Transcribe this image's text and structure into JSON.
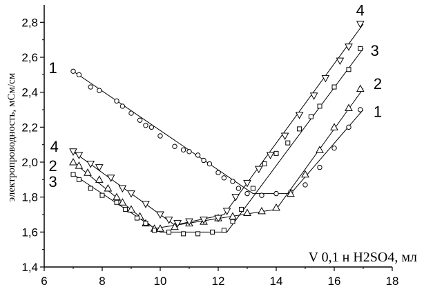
{
  "chart_data": {
    "type": "scatter",
    "xlabel": "V  0,1 н H2SO4, мл",
    "ylabel": "электропроводность, мСм/см",
    "xlim": [
      6,
      18
    ],
    "ylim": [
      1.4,
      2.9
    ],
    "x_ticks": [
      "6",
      "8",
      "10",
      "12",
      "14",
      "16",
      "18"
    ],
    "y_ticks": [
      "1,4",
      "1,6",
      "1,8",
      "2,0",
      "2,2",
      "2,4",
      "2,6",
      "2,8"
    ],
    "grid": false,
    "series": [
      {
        "name": "1",
        "marker": "circle",
        "points": [
          [
            7.0,
            2.52
          ],
          [
            7.2,
            2.5
          ],
          [
            7.6,
            2.43
          ],
          [
            7.9,
            2.41
          ],
          [
            8.5,
            2.35
          ],
          [
            8.7,
            2.32
          ],
          [
            9.0,
            2.28
          ],
          [
            9.3,
            2.24
          ],
          [
            9.5,
            2.21
          ],
          [
            9.7,
            2.2
          ],
          [
            10.0,
            2.15
          ],
          [
            10.5,
            2.09
          ],
          [
            10.8,
            2.07
          ],
          [
            11.0,
            2.06
          ],
          [
            11.3,
            2.04
          ],
          [
            11.5,
            2.01
          ],
          [
            11.7,
            1.99
          ],
          [
            12.0,
            1.94
          ],
          [
            12.2,
            1.91
          ],
          [
            12.5,
            1.89
          ],
          [
            12.7,
            1.85
          ],
          [
            13.0,
            1.82
          ],
          [
            13.5,
            1.81
          ],
          [
            14.0,
            1.82
          ],
          [
            14.5,
            1.83
          ],
          [
            15.0,
            1.87
          ],
          [
            15.5,
            1.97
          ],
          [
            16.0,
            2.08
          ],
          [
            16.5,
            2.2
          ],
          [
            16.9,
            2.3
          ]
        ],
        "line": [
          [
            7.0,
            2.52
          ],
          [
            13.2,
            1.82
          ],
          [
            14.5,
            1.82
          ],
          [
            17.0,
            2.3
          ]
        ]
      },
      {
        "name": "2",
        "marker": "triangle-up",
        "points": [
          [
            7.0,
            2.0
          ],
          [
            7.2,
            1.98
          ],
          [
            7.5,
            1.94
          ],
          [
            7.9,
            1.9
          ],
          [
            8.2,
            1.85
          ],
          [
            8.5,
            1.8
          ],
          [
            8.7,
            1.77
          ],
          [
            9.0,
            1.73
          ],
          [
            9.3,
            1.69
          ],
          [
            9.5,
            1.65
          ],
          [
            9.8,
            1.62
          ],
          [
            10.0,
            1.62
          ],
          [
            10.5,
            1.63
          ],
          [
            11.0,
            1.65
          ],
          [
            11.5,
            1.66
          ],
          [
            12.0,
            1.68
          ],
          [
            12.5,
            1.69
          ],
          [
            13.0,
            1.71
          ],
          [
            13.5,
            1.72
          ],
          [
            14.0,
            1.74
          ],
          [
            14.5,
            1.82
          ],
          [
            15.0,
            1.93
          ],
          [
            15.5,
            2.07
          ],
          [
            16.0,
            2.2
          ],
          [
            16.5,
            2.31
          ],
          [
            16.9,
            2.42
          ]
        ],
        "line": [
          [
            7.0,
            2.0
          ],
          [
            9.8,
            1.62
          ],
          [
            14.0,
            1.73
          ],
          [
            17.0,
            2.42
          ]
        ]
      },
      {
        "name": "3",
        "marker": "square",
        "points": [
          [
            7.0,
            1.93
          ],
          [
            7.2,
            1.9
          ],
          [
            7.6,
            1.85
          ],
          [
            8.0,
            1.81
          ],
          [
            8.5,
            1.77
          ],
          [
            8.8,
            1.73
          ],
          [
            9.2,
            1.68
          ],
          [
            9.5,
            1.65
          ],
          [
            9.8,
            1.61
          ],
          [
            10.3,
            1.6
          ],
          [
            10.8,
            1.59
          ],
          [
            11.3,
            1.59
          ],
          [
            11.8,
            1.6
          ],
          [
            12.2,
            1.61
          ],
          [
            12.5,
            1.66
          ],
          [
            12.8,
            1.73
          ],
          [
            13.2,
            1.85
          ],
          [
            13.6,
            1.99
          ],
          [
            14.0,
            2.05
          ],
          [
            14.4,
            2.11
          ],
          [
            14.8,
            2.19
          ],
          [
            15.2,
            2.26
          ],
          [
            15.5,
            2.32
          ],
          [
            16.0,
            2.43
          ],
          [
            16.5,
            2.53
          ],
          [
            16.9,
            2.65
          ]
        ],
        "line": [
          [
            7.0,
            1.93
          ],
          [
            10.0,
            1.6
          ],
          [
            12.3,
            1.6
          ],
          [
            17.0,
            2.65
          ]
        ]
      },
      {
        "name": "4",
        "marker": "triangle-down",
        "points": [
          [
            7.0,
            2.06
          ],
          [
            7.2,
            2.04
          ],
          [
            7.6,
            1.99
          ],
          [
            7.9,
            1.97
          ],
          [
            8.3,
            1.91
          ],
          [
            8.7,
            1.85
          ],
          [
            9.0,
            1.82
          ],
          [
            9.5,
            1.76
          ],
          [
            10.0,
            1.7
          ],
          [
            10.3,
            1.67
          ],
          [
            10.6,
            1.65
          ],
          [
            11.0,
            1.66
          ],
          [
            11.5,
            1.67
          ],
          [
            12.0,
            1.68
          ],
          [
            12.3,
            1.72
          ],
          [
            12.6,
            1.8
          ],
          [
            13.0,
            1.88
          ],
          [
            13.4,
            1.96
          ],
          [
            13.8,
            2.04
          ],
          [
            14.3,
            2.15
          ],
          [
            14.8,
            2.27
          ],
          [
            15.3,
            2.38
          ],
          [
            15.7,
            2.48
          ],
          [
            16.2,
            2.58
          ],
          [
            16.5,
            2.66
          ],
          [
            16.9,
            2.79
          ]
        ],
        "line": [
          [
            7.0,
            2.06
          ],
          [
            10.5,
            1.64
          ],
          [
            12.2,
            1.7
          ],
          [
            17.0,
            2.79
          ]
        ]
      }
    ],
    "annotations": [
      {
        "text": "1",
        "x": 6.3,
        "y": 2.54
      },
      {
        "text": "4",
        "x": 6.35,
        "y": 2.09
      },
      {
        "text": "2",
        "x": 6.3,
        "y": 1.98
      },
      {
        "text": "3",
        "x": 6.3,
        "y": 1.89
      },
      {
        "text": "4",
        "x": 16.9,
        "y": 2.87
      },
      {
        "text": "3",
        "x": 17.4,
        "y": 2.64
      },
      {
        "text": "2",
        "x": 17.5,
        "y": 2.45
      },
      {
        "text": "1",
        "x": 17.5,
        "y": 2.29
      }
    ]
  }
}
